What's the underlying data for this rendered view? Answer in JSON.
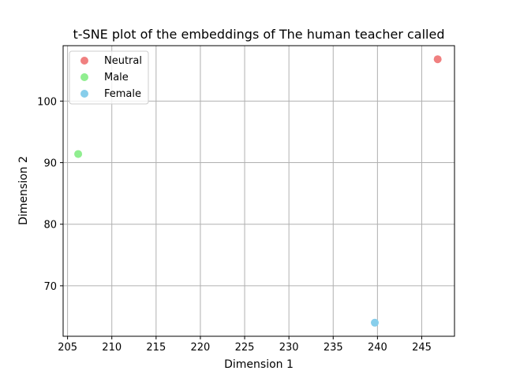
{
  "chart_data": {
    "type": "scatter",
    "title": "t-SNE plot of the embeddings of The human teacher called",
    "xlabel": "Dimension 1",
    "ylabel": "Dimension 2",
    "xlim": [
      204.5,
      248.7
    ],
    "ylim": [
      61.8,
      109.0
    ],
    "xticks": [
      205,
      210,
      215,
      220,
      225,
      230,
      235,
      240,
      245
    ],
    "yticks": [
      70,
      80,
      90,
      100
    ],
    "grid": true,
    "legend_position": "top-left",
    "series": [
      {
        "name": "Neutral",
        "color": "#f08080",
        "points": [
          {
            "x": 246.8,
            "y": 106.8
          }
        ]
      },
      {
        "name": "Male",
        "color": "#90ee90",
        "points": [
          {
            "x": 206.2,
            "y": 91.4
          }
        ]
      },
      {
        "name": "Female",
        "color": "#87ceeb",
        "points": [
          {
            "x": 239.7,
            "y": 64.0
          }
        ]
      }
    ]
  }
}
